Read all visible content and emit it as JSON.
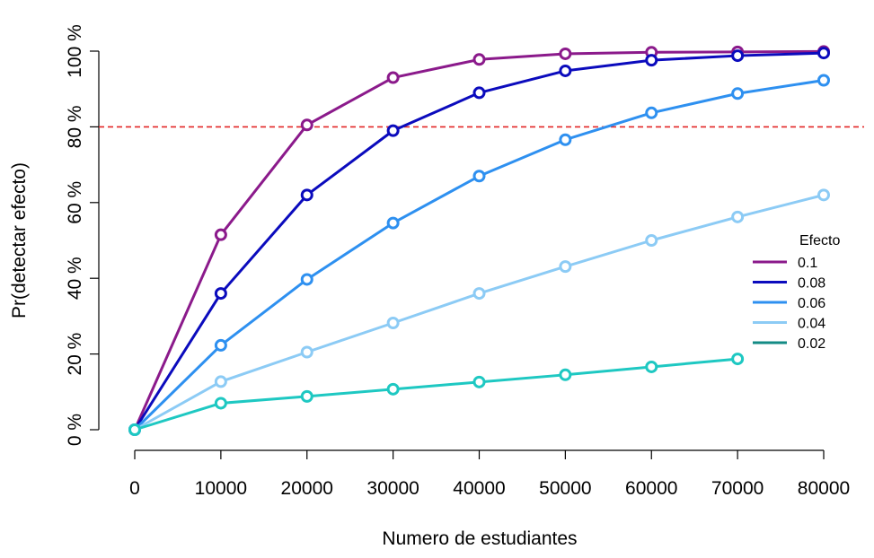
{
  "chart_data": {
    "type": "line",
    "title": "",
    "xlabel": "Numero de estudiantes",
    "ylabel": "Pr(detectar efecto)",
    "x": [
      0,
      10000,
      20000,
      30000,
      40000,
      50000,
      60000,
      70000,
      80000
    ],
    "xticks": [
      "0",
      "10000",
      "20000",
      "30000",
      "40000",
      "50000",
      "60000",
      "70000",
      "80000"
    ],
    "yticks": [
      "0 %",
      "20 %",
      "40 %",
      "60 %",
      "80 %",
      "100 %"
    ],
    "ytick_values": [
      0,
      20,
      40,
      60,
      80,
      100
    ],
    "xlim": [
      0,
      80000
    ],
    "ylim": [
      0,
      100
    ],
    "threshold": {
      "value": 80,
      "color": "#e32626",
      "style": "dashed"
    },
    "grid": false,
    "legend": {
      "title": "Efecto",
      "position": "right"
    },
    "series": [
      {
        "name": "0.1",
        "color": "#8b1a8b",
        "values": [
          0,
          51.5,
          80.5,
          93,
          97.8,
          99.3,
          99.7,
          99.8,
          99.9
        ]
      },
      {
        "name": "0.08",
        "color": "#0b0bbd",
        "values": [
          0,
          36,
          62,
          79,
          89,
          94.8,
          97.6,
          98.8,
          99.5
        ]
      },
      {
        "name": "0.06",
        "color": "#2e90f0",
        "values": [
          0,
          22.3,
          39.7,
          54.6,
          67,
          76.6,
          83.7,
          88.8,
          92.3
        ]
      },
      {
        "name": "0.04",
        "color": "#8ccbf5",
        "values": [
          0,
          12.7,
          20.5,
          28.2,
          36,
          43.1,
          50,
          56.2,
          62
        ]
      },
      {
        "name": "0.02",
        "color": "#1ec8c2",
        "legend_color": "#138b85",
        "values": [
          0,
          7,
          8.8,
          10.7,
          12.6,
          14.5,
          16.6,
          18.7,
          null
        ]
      }
    ]
  }
}
